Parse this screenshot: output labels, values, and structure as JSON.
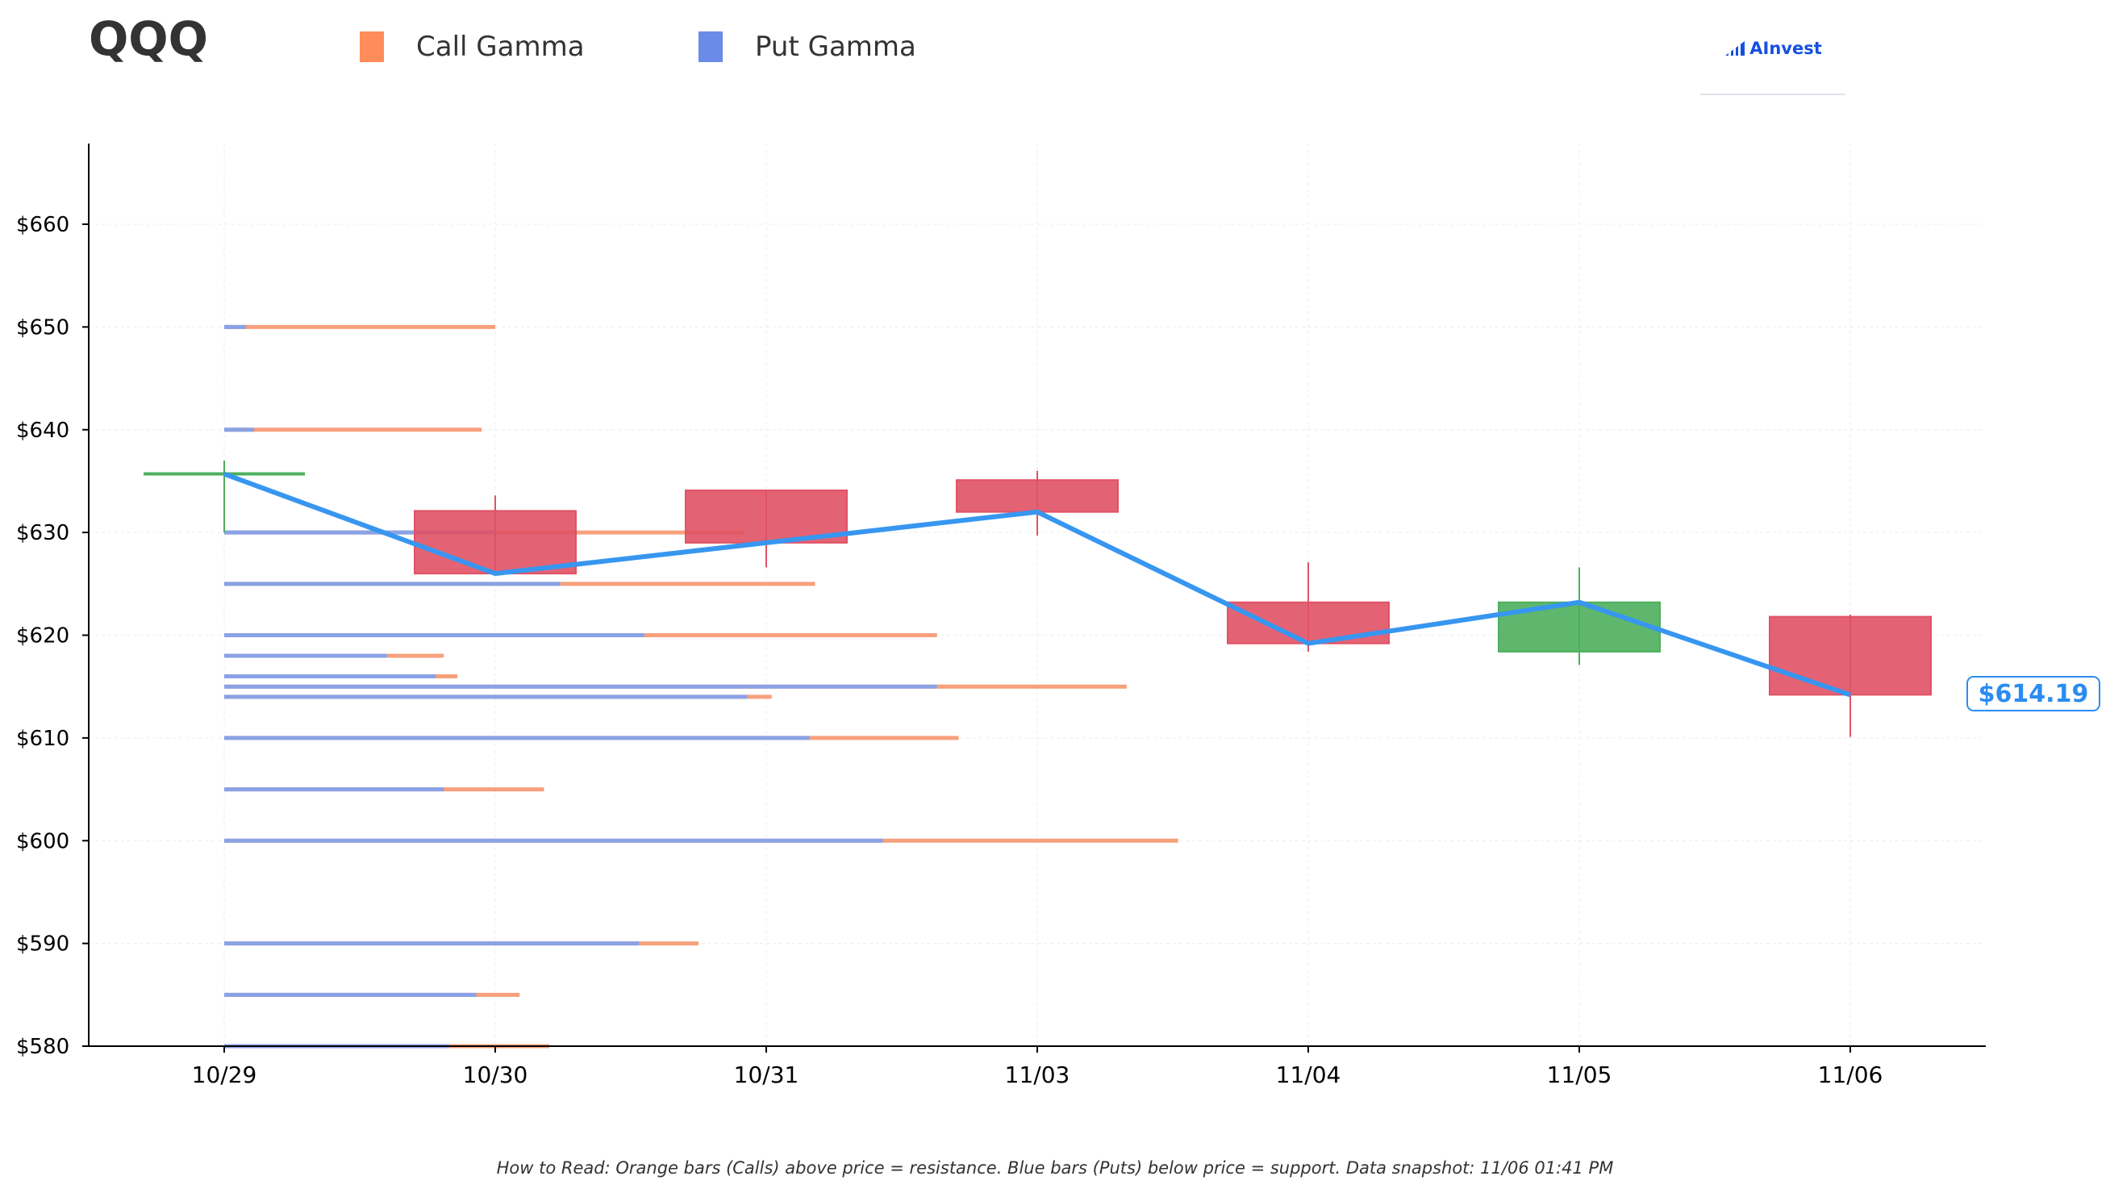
{
  "header": {
    "ticker": "QQQ",
    "legend": [
      {
        "label": "Call Gamma",
        "color": "#ff8c5a"
      },
      {
        "label": "Put Gamma",
        "color": "#6a8be8"
      }
    ],
    "brand": "AInvest"
  },
  "price_badge": "$614.19",
  "footer": "How to Read: Orange bars (Calls) above price = resistance. Blue bars (Puts) below price = support. Data snapshot: 11/06 01:41 PM",
  "colors": {
    "call": "#f7a07c",
    "put": "#8aa2e6",
    "bearish": "#e05265",
    "bullish": "#4caf5c",
    "price_line": "#3796f0"
  },
  "chart_data": {
    "type": "candlestick",
    "x_categories": [
      "10/29",
      "10/30",
      "10/31",
      "11/03",
      "11/04",
      "11/05",
      "11/06"
    ],
    "y_ticks": [
      "$580",
      "$590",
      "$600",
      "$610",
      "$620",
      "$630",
      "$640",
      "$650",
      "$660"
    ],
    "ylim": [
      580,
      668
    ],
    "grid": true,
    "candles": [
      {
        "date": "10/29",
        "open": 635.7,
        "close": 635.7,
        "high": 637.0,
        "low": 630.0
      },
      {
        "date": "10/30",
        "open": 632.1,
        "close": 626.0,
        "high": 633.6,
        "low": 626.0
      },
      {
        "date": "10/31",
        "open": 634.1,
        "close": 629.0,
        "high": 634.1,
        "low": 626.6
      },
      {
        "date": "11/03",
        "open": 635.1,
        "close": 632.0,
        "high": 636.0,
        "low": 629.7
      },
      {
        "date": "11/04",
        "open": 623.2,
        "close": 619.2,
        "high": 627.1,
        "low": 618.4
      },
      {
        "date": "11/05",
        "open": 618.4,
        "close": 623.2,
        "high": 626.6,
        "low": 617.1
      },
      {
        "date": "11/06",
        "open": 621.8,
        "close": 614.2,
        "high": 622.0,
        "low": 610.1
      }
    ],
    "price_line": [
      635.7,
      626.0,
      629.0,
      632.0,
      619.2,
      623.2,
      614.19
    ],
    "gamma_levels": [
      {
        "strike": 650,
        "put": 0.08,
        "call": 1.0
      },
      {
        "strike": 640,
        "put": 0.11,
        "call": 0.95
      },
      {
        "strike": 630,
        "put": 1.0,
        "call": 1.92
      },
      {
        "strike": 625,
        "put": 1.24,
        "call": 2.18
      },
      {
        "strike": 620,
        "put": 1.55,
        "call": 2.63
      },
      {
        "strike": 618,
        "put": 0.6,
        "call": 0.81
      },
      {
        "strike": 616,
        "put": 0.78,
        "call": 0.86
      },
      {
        "strike": 615,
        "put": 2.63,
        "call": 3.33
      },
      {
        "strike": 614,
        "put": 1.93,
        "call": 2.02
      },
      {
        "strike": 610,
        "put": 2.16,
        "call": 2.71
      },
      {
        "strike": 605,
        "put": 0.81,
        "call": 1.18
      },
      {
        "strike": 600,
        "put": 2.43,
        "call": 3.52
      },
      {
        "strike": 590,
        "put": 1.53,
        "call": 1.75
      },
      {
        "strike": 585,
        "put": 0.93,
        "call": 1.09
      },
      {
        "strike": 580,
        "put": 0.83,
        "call": 1.2
      }
    ]
  }
}
